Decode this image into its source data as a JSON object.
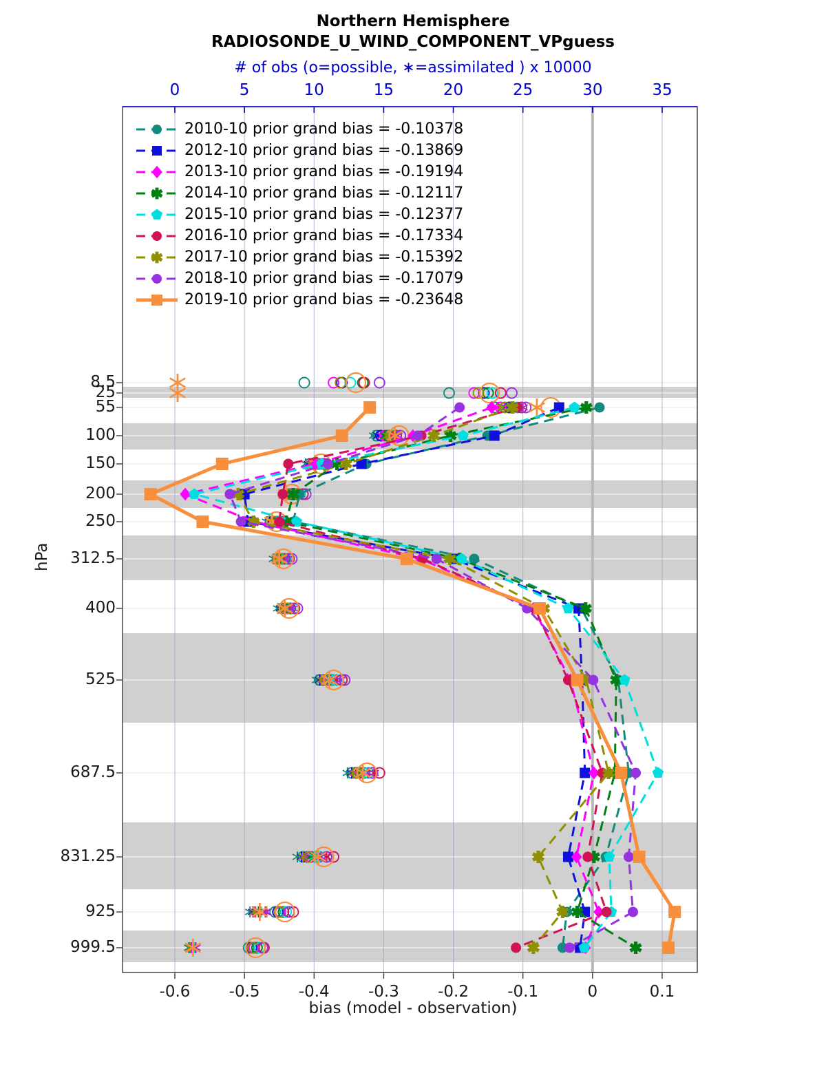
{
  "title": {
    "line1": "Northern Hemisphere",
    "line2": "RADIOSONDE_U_WIND_COMPONENT_VPguess"
  },
  "top_axis": {
    "label": "# of obs (o=possible, ∗=assimilated ) x 10000",
    "ticks": [
      "0",
      "5",
      "10",
      "15",
      "20",
      "25",
      "30",
      "35"
    ],
    "color": "#0000cc"
  },
  "bottom_axis": {
    "label": "bias (model - observation)",
    "ticks": [
      "-0.6",
      "-0.5",
      "-0.4",
      "-0.3",
      "-0.2",
      "-0.1",
      "0",
      "0.1"
    ]
  },
  "left_axis": {
    "label": "hPa",
    "ticks": [
      "8.5",
      "25",
      "55",
      "100",
      "150",
      "200",
      "250",
      "312.5",
      "400",
      "525",
      "687.5",
      "831.25",
      "925",
      "999.5"
    ]
  },
  "chart_data": {
    "type": "line",
    "orientation": "vertical-profile",
    "grid": true,
    "legend_position": "upper-left-inside",
    "band_color": "#d0d0d0",
    "zero_line_color": "#b8b8b8",
    "gridline_color": "#9c9cc9",
    "levels_hpa": [
      8.5,
      25,
      55,
      100,
      150,
      200,
      250,
      312.5,
      400,
      525,
      687.5,
      831.25,
      925,
      999.5
    ],
    "bias_axis_range": [
      -0.675,
      0.147
    ],
    "obs_axis_range": [
      -3.7,
      37.3
    ],
    "series": [
      {
        "name": "2010-10",
        "label": "2010-10 prior grand bias = -0.10378",
        "grand_bias": -0.10378,
        "color": "#128a7e",
        "marker": "circle",
        "line": "dashed",
        "bias": [
          null,
          null,
          0.01,
          -0.151,
          -0.325,
          -0.421,
          -0.43,
          -0.17,
          -0.016,
          0.037,
          0.052,
          0.019,
          -0.037,
          -0.043
        ],
        "possible": [
          9.3,
          19.7,
          23.0,
          14.5,
          9.7,
          8.2,
          6.9,
          7.4,
          7.7,
          10.4,
          12.7,
          9.2,
          7.2,
          5.3
        ],
        "assimilated": [
          null,
          null,
          22.8,
          14.3,
          9.4,
          7.8,
          6.6,
          7.1,
          7.4,
          10.2,
          12.4,
          8.8,
          5.4,
          1.0
        ]
      },
      {
        "name": "2012-10",
        "label": "2012-10 prior grand bias = -0.13869",
        "grand_bias": -0.13869,
        "color": "#1010dd",
        "marker": "square",
        "line": "dashed",
        "bias": [
          null,
          null,
          -0.048,
          -0.141,
          -0.332,
          -0.5,
          -0.495,
          -0.2,
          -0.02,
          -0.015,
          -0.011,
          -0.035,
          -0.011,
          -0.018
        ],
        "possible": [
          12.0,
          22.2,
          24.0,
          14.8,
          9.9,
          8.4,
          7.1,
          7.6,
          7.9,
          10.7,
          13.0,
          9.5,
          7.4,
          5.5
        ],
        "assimilated": [
          null,
          null,
          23.8,
          14.6,
          9.6,
          8.0,
          6.8,
          7.3,
          7.6,
          10.4,
          12.7,
          9.1,
          5.6,
          1.1
        ]
      },
      {
        "name": "2013-10",
        "label": "2013-10 prior grand bias = -0.19194",
        "grand_bias": -0.19194,
        "color": "#ff00ff",
        "marker": "diamond",
        "line": "dashed",
        "bias": [
          null,
          null,
          -0.145,
          -0.258,
          -0.398,
          -0.585,
          -0.486,
          -0.247,
          -0.085,
          -0.032,
          0.002,
          -0.023,
          0.009,
          -0.01
        ],
        "possible": [
          11.4,
          21.5,
          23.4,
          15.1,
          10.1,
          8.6,
          7.3,
          7.7,
          8.1,
          11.0,
          13.3,
          9.8,
          7.6,
          5.7
        ],
        "assimilated": [
          null,
          null,
          23.2,
          14.9,
          9.8,
          8.2,
          7.0,
          7.4,
          7.8,
          10.7,
          13.0,
          9.4,
          5.8,
          1.2
        ]
      },
      {
        "name": "2014-10",
        "label": "2014-10 prior grand bias = -0.12117",
        "grand_bias": -0.12117,
        "color": "#008012",
        "marker": "star",
        "line": "dashed",
        "bias": [
          null,
          null,
          -0.009,
          -0.204,
          -0.367,
          -0.43,
          -0.44,
          -0.191,
          -0.01,
          0.034,
          0.032,
          0.002,
          -0.022,
          0.062
        ],
        "possible": [
          13.5,
          22.5,
          24.3,
          15.3,
          10.3,
          8.8,
          7.4,
          7.9,
          8.3,
          11.3,
          13.6,
          10.1,
          7.8,
          5.9
        ],
        "assimilated": [
          null,
          null,
          24.1,
          15.1,
          10.0,
          8.4,
          7.1,
          7.6,
          8.0,
          11.0,
          13.3,
          9.7,
          6.0,
          1.3
        ]
      },
      {
        "name": "2015-10",
        "label": "2015-10 prior grand bias = -0.12377",
        "grand_bias": -0.12377,
        "color": "#00dfe0",
        "marker": "pentagon",
        "line": "dashed",
        "bias": [
          null,
          null,
          -0.026,
          -0.186,
          -0.389,
          -0.572,
          -0.425,
          -0.188,
          -0.035,
          0.046,
          0.094,
          0.024,
          0.027,
          -0.012
        ],
        "possible": [
          12.6,
          22.8,
          24.6,
          15.7,
          10.5,
          9.0,
          7.6,
          8.0,
          8.5,
          11.6,
          13.9,
          10.4,
          8.0,
          6.1
        ],
        "assimilated": [
          null,
          null,
          24.4,
          15.5,
          10.2,
          8.6,
          7.3,
          7.7,
          8.2,
          11.3,
          13.6,
          10.0,
          6.2,
          1.4
        ]
      },
      {
        "name": "2016-10",
        "label": "2016-10 prior grand bias = -0.17334",
        "grand_bias": -0.17334,
        "color": "#d01355",
        "marker": "circle",
        "line": "dashed",
        "bias": [
          null,
          null,
          -0.108,
          -0.246,
          -0.437,
          -0.445,
          -0.45,
          -0.244,
          -0.083,
          -0.035,
          0.014,
          -0.007,
          0.02,
          -0.11
        ],
        "possible": [
          13.6,
          23.4,
          24.9,
          15.9,
          10.7,
          9.2,
          7.7,
          8.2,
          8.6,
          12.0,
          14.7,
          11.4,
          8.5,
          6.4
        ],
        "assimilated": [
          null,
          null,
          24.7,
          15.7,
          10.4,
          8.8,
          7.4,
          7.9,
          8.3,
          11.6,
          14.3,
          10.9,
          6.5,
          1.5
        ]
      },
      {
        "name": "2017-10",
        "label": "2017-10 prior grand bias = -0.15392",
        "grand_bias": -0.15392,
        "color": "#8f8f00",
        "marker": "star",
        "line": "dashed",
        "bias": [
          null,
          null,
          -0.115,
          -0.228,
          -0.354,
          -0.509,
          -0.487,
          -0.205,
          -0.07,
          -0.009,
          0.023,
          -0.078,
          -0.043,
          -0.085
        ],
        "possible": [
          11.9,
          21.8,
          23.7,
          15.5,
          10.0,
          8.5,
          7.2,
          7.6,
          8.0,
          10.8,
          13.1,
          9.6,
          7.5,
          5.6
        ],
        "assimilated": [
          null,
          null,
          23.5,
          15.3,
          9.7,
          8.1,
          6.9,
          7.3,
          7.7,
          10.5,
          12.8,
          9.2,
          5.7,
          1.1
        ]
      },
      {
        "name": "2018-10",
        "label": "2018-10 prior grand bias = -0.17079",
        "grand_bias": -0.17079,
        "color": "#9632e0",
        "marker": "circle",
        "line": "dashed",
        "bias": [
          null,
          null,
          -0.191,
          -0.251,
          -0.38,
          -0.521,
          -0.505,
          -0.224,
          -0.094,
          0.001,
          0.062,
          0.052,
          0.058,
          -0.033
        ],
        "possible": [
          14.7,
          24.2,
          25.2,
          16.2,
          10.9,
          9.4,
          7.9,
          8.4,
          8.8,
          12.2,
          14.2,
          10.9,
          8.2,
          6.3
        ],
        "assimilated": [
          null,
          null,
          25.0,
          16.0,
          10.6,
          9.0,
          7.6,
          8.1,
          8.5,
          11.9,
          13.9,
          10.5,
          6.6,
          1.5
        ]
      },
      {
        "name": "2019-10",
        "label": "2019-10 prior grand bias = -0.23648",
        "grand_bias": -0.23648,
        "color": "#f78f3c",
        "marker": "square",
        "line": "solid",
        "bias": [
          null,
          null,
          -0.32,
          -0.36,
          -0.532,
          -0.635,
          -0.56,
          -0.267,
          -0.076,
          -0.022,
          0.041,
          0.067,
          0.118,
          0.109
        ],
        "possible": [
          13.0,
          22.6,
          27.0,
          16.1,
          10.5,
          8.4,
          7.3,
          7.8,
          8.2,
          11.4,
          13.8,
          10.7,
          7.9,
          5.8
        ],
        "assimilated": [
          0.2,
          0.2,
          26.0,
          15.8,
          10.1,
          8.0,
          7.0,
          7.5,
          7.9,
          11.1,
          13.5,
          10.3,
          6.1,
          1.3
        ]
      }
    ]
  }
}
